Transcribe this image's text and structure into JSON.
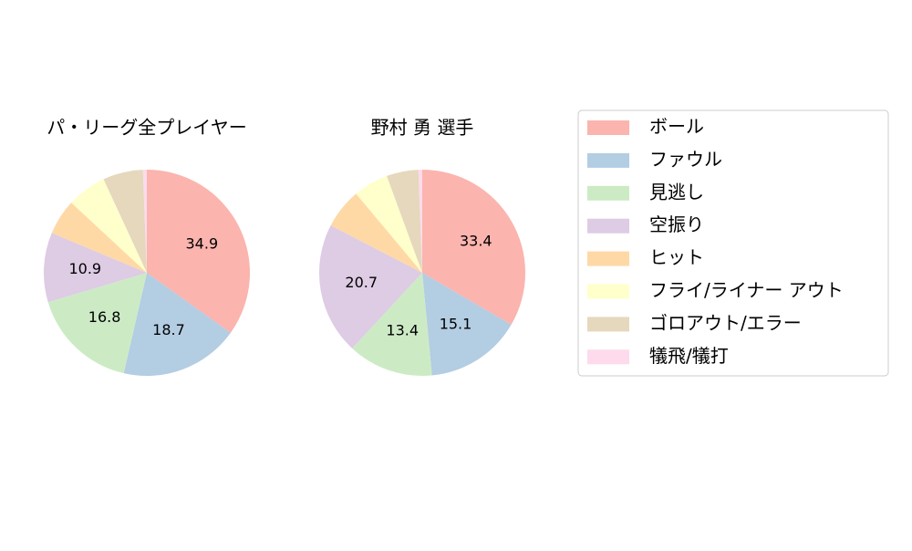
{
  "chart_data": [
    {
      "type": "pie",
      "title": "パ・リーグ全プレイヤー",
      "categories": [
        "ボール",
        "ファウル",
        "見逃し",
        "空振り",
        "ヒット",
        "フライ/ライナー アウト",
        "ゴロアウト/エラー",
        "犠飛/犠打"
      ],
      "values": [
        34.9,
        18.7,
        16.8,
        10.9,
        5.6,
        6.2,
        6.3,
        0.6
      ],
      "value_labels": [
        "34.9",
        "18.7",
        "16.8",
        "10.9",
        null,
        null,
        null,
        null
      ],
      "colors": [
        "#fbb4ae",
        "#b3cde3",
        "#ccebc5",
        "#decbe4",
        "#fed9a6",
        "#ffffcc",
        "#e5d8bd",
        "#fddaec"
      ]
    },
    {
      "type": "pie",
      "title": "野村 勇  選手",
      "categories": [
        "ボール",
        "ファウル",
        "見逃し",
        "空振り",
        "ヒット",
        "フライ/ライナー アウト",
        "ゴロアウト/エラー",
        "犠飛/犠打"
      ],
      "values": [
        33.4,
        15.1,
        13.4,
        20.7,
        6.3,
        5.5,
        5.0,
        0.6
      ],
      "value_labels": [
        "33.4",
        "15.1",
        "13.4",
        "20.7",
        null,
        null,
        null,
        null
      ],
      "colors": [
        "#fbb4ae",
        "#b3cde3",
        "#ccebc5",
        "#decbe4",
        "#fed9a6",
        "#ffffcc",
        "#e5d8bd",
        "#fddaec"
      ]
    }
  ]
}
